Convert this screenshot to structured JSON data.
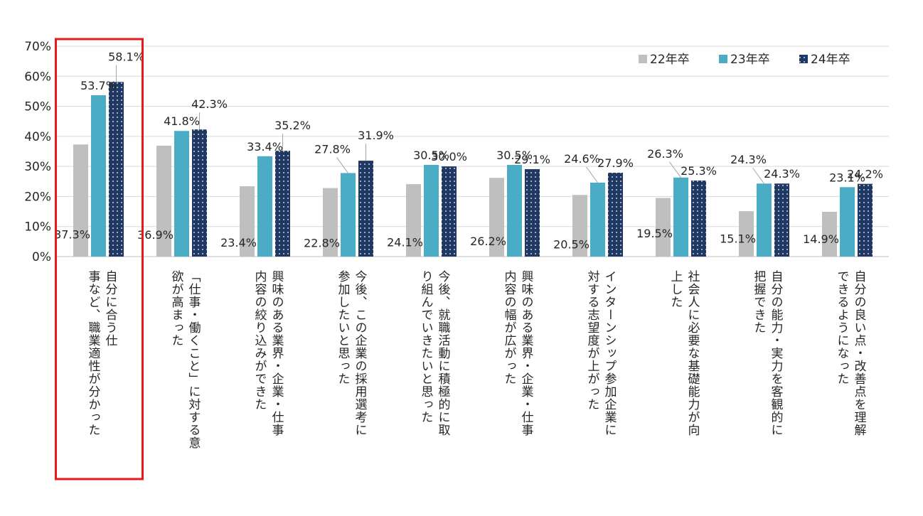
{
  "chart_data": {
    "type": "bar",
    "title": "",
    "xlabel": "",
    "ylabel": "",
    "ylim": [
      0,
      70
    ],
    "y_ticks": [
      "0%",
      "10%",
      "20%",
      "30%",
      "40%",
      "50%",
      "60%",
      "70%"
    ],
    "grid": true,
    "legend_position": "top-right",
    "categories": [
      [
        "自分に合う仕",
        "事など、職業適性が分かった"
      ],
      [
        "「仕事・働くこと」に対する意",
        "欲が高まった"
      ],
      [
        "興味のある業界・企業・仕事",
        "内容の絞り込みができた"
      ],
      [
        "今後、この企業の採用選考に",
        "参加したいと思った"
      ],
      [
        "今後、就職活動に積極的に取",
        "り組んでいきたいと思った"
      ],
      [
        "興味のある業界・企業・仕事",
        "内容の幅が広がった"
      ],
      [
        "インターンシップ参加企業に",
        "対する志望度が上がった"
      ],
      [
        "社会人に必要な基礎能力が向",
        "上した"
      ],
      [
        "自分の能力・実力を客観的に",
        "把握できた"
      ],
      [
        "自分の良い点・改善点を理解",
        "できるようになった"
      ]
    ],
    "series": [
      {
        "name": "22年卒",
        "color": "#bfbfbf",
        "pattern": "solid",
        "values": [
          37.3,
          36.9,
          23.4,
          22.8,
          24.1,
          26.2,
          20.5,
          19.5,
          15.1,
          14.9
        ],
        "labels": [
          "37.3%",
          "36.9%",
          "23.4%",
          "22.8%",
          "24.1%",
          "26.2%",
          "20.5%",
          "19.5%",
          "15.1%",
          "14.9%"
        ]
      },
      {
        "name": "23年卒",
        "color": "#4bacc6",
        "pattern": "solid",
        "values": [
          53.7,
          41.8,
          33.4,
          27.8,
          30.5,
          30.5,
          24.6,
          26.3,
          24.3,
          23.1
        ],
        "labels": [
          "53.7%",
          "41.8%",
          "33.4%",
          "27.8%",
          "30.5%",
          "30.5%",
          "24.6%",
          "26.3%",
          "24.3%",
          "23.1%"
        ]
      },
      {
        "name": "24年卒",
        "color": "#1f3864",
        "pattern": "dots",
        "values": [
          58.1,
          42.3,
          35.2,
          31.9,
          30.0,
          29.1,
          27.9,
          25.3,
          24.3,
          24.2
        ],
        "labels": [
          "58.1%",
          "42.3%",
          "35.2%",
          "31.9%",
          "30.0%",
          "29.1%",
          "27.9%",
          "25.3%",
          "24.3%",
          "24.2%"
        ]
      }
    ],
    "highlight_category_index": 0,
    "highlight_color": "#e8191d"
  }
}
